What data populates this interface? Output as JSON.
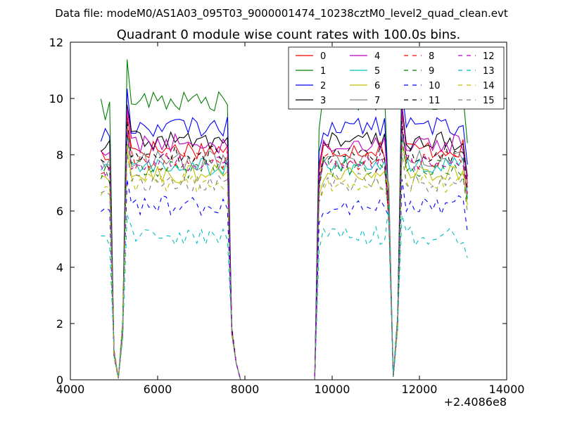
{
  "chart_data": {
    "type": "line",
    "suptitle": "Data file: modeM0/AS1A03_095T03_9000001474_10238cztM0_level2_quad_clean.evt",
    "title": "Quadrant 0 module wise count rates with 100.0s bins.",
    "xlabel": "",
    "ylabel": "",
    "x_offset_label": "+2.4086e8",
    "xlim": [
      4000,
      14000
    ],
    "ylim": [
      0,
      12
    ],
    "x_ticks": [
      4000,
      6000,
      8000,
      10000,
      12000,
      14000
    ],
    "y_ticks": [
      0,
      2,
      4,
      6,
      8,
      10,
      12
    ],
    "grid": false,
    "legend_position": "top-right",
    "segments": [
      {
        "start": 4700,
        "end": 7700,
        "dip_start": 4900,
        "dip_end": 5300
      },
      {
        "start": 9700,
        "end": 13100,
        "dip_start": 11300,
        "dip_end": 11500
      }
    ],
    "gap": [
      7800,
      9600
    ],
    "series": [
      {
        "name": "0",
        "color": "#ff0000",
        "dash": "solid",
        "level": 8.2
      },
      {
        "name": "1",
        "color": "#008000",
        "dash": "solid",
        "level": 9.9
      },
      {
        "name": "2",
        "color": "#0000ff",
        "dash": "solid",
        "level": 9.0
      },
      {
        "name": "3",
        "color": "#000000",
        "dash": "solid",
        "level": 8.5
      },
      {
        "name": "4",
        "color": "#bf00bf",
        "dash": "solid",
        "level": 8.4
      },
      {
        "name": "5",
        "color": "#00bfbf",
        "dash": "solid",
        "level": 7.6
      },
      {
        "name": "6",
        "color": "#bfbf00",
        "dash": "solid",
        "level": 7.3
      },
      {
        "name": "7",
        "color": "#808080",
        "dash": "solid",
        "level": 7.8
      },
      {
        "name": "8",
        "color": "#ff0000",
        "dash": "dashed",
        "level": 7.8
      },
      {
        "name": "9",
        "color": "#008000",
        "dash": "dashed",
        "level": 7.5
      },
      {
        "name": "10",
        "color": "#0000ff",
        "dash": "dashed",
        "level": 6.2
      },
      {
        "name": "11",
        "color": "#000000",
        "dash": "dashed",
        "level": 8.0
      },
      {
        "name": "12",
        "color": "#bf00bf",
        "dash": "dashed",
        "level": 7.7
      },
      {
        "name": "13",
        "color": "#00bfbf",
        "dash": "dashed",
        "level": 5.1
      },
      {
        "name": "14",
        "color": "#bfbf00",
        "dash": "dashed",
        "level": 7.0
      },
      {
        "name": "15",
        "color": "#808080",
        "dash": "dashed",
        "level": 7.0
      }
    ]
  }
}
